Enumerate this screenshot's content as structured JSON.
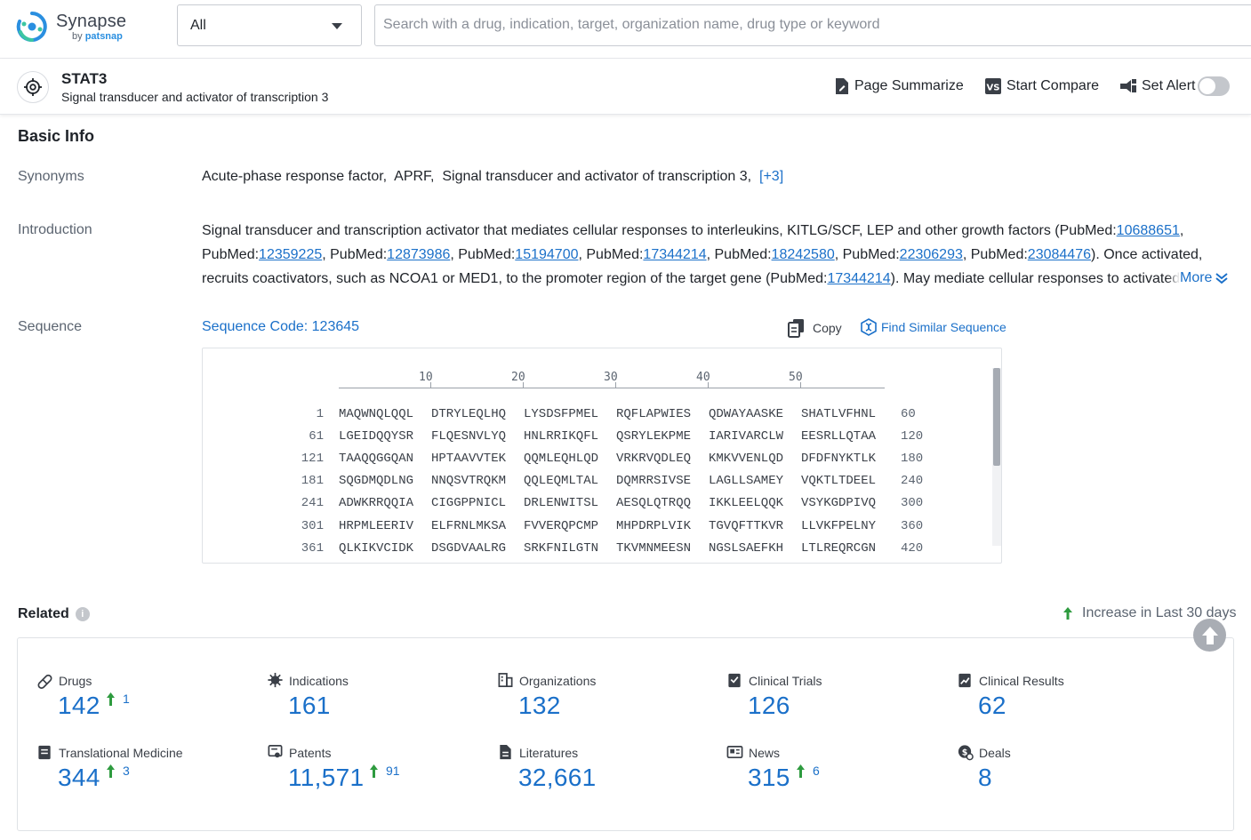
{
  "app": {
    "name": "Synapse",
    "by_prefix": "by",
    "by_brand": "patsnap",
    "brand_color": "#2a8fe0"
  },
  "search": {
    "scope_value": "All",
    "placeholder": "Search with a drug, indication, target, organization name, drug type or keyword"
  },
  "target": {
    "name": "STAT3",
    "full_name": "Signal transducer and activator of transcription 3"
  },
  "actions": {
    "summarize": "Page Summarize",
    "compare": "Start Compare",
    "alert": "Set Alert",
    "alert_on": false
  },
  "basic_info": {
    "title": "Basic Info",
    "synonyms_label": "Synonyms",
    "synonyms": [
      "Acute-phase response factor,",
      "APRF,",
      "Signal transducer and activator of transcription 3,"
    ],
    "synonyms_more": "[+3]",
    "intro_label": "Introduction",
    "intro_line1_text": "Signal transducer and transcription activator that mediates cellular responses to interleukins, KITLG/SCF, LEP and other growth factors (PubMed:",
    "intro_refs": [
      "10688651",
      "12359225",
      "12873986",
      "15194700",
      "17344214",
      "18242580",
      "22306293",
      "23084476"
    ],
    "intro_ref_prefix": "PubMed:",
    "intro_line3_a": "). Once activated,",
    "intro_line3_b": "recruits coactivators, such as NCOA1 or MED1, to the promoter region of the target gene (PubMed:",
    "intro_line3_ref": "17344214",
    "intro_line3_c": "). May mediate cellular responses to activated F",
    "more_label": "More",
    "sequence_label": "Sequence",
    "sequence_code": "Sequence Code: 123645",
    "copy_label": "Copy",
    "find_similar_label": "Find Similar Sequence",
    "ruler": [
      "10",
      "20",
      "30",
      "40",
      "50"
    ],
    "rows": [
      {
        "start": "1",
        "blocks": [
          "MAQWNQLQQL",
          "DTRYLEQLHQ",
          "LYSDSFPMEL",
          "RQFLAPWIES",
          "QDWAYAASKE",
          "SHATLVFHNL"
        ],
        "end": "60"
      },
      {
        "start": "61",
        "blocks": [
          "LGEIDQQYSR",
          "FLQESNVLYQ",
          "HNLRRIKQFL",
          "QSRYLEKPME",
          "IARIVARCLW",
          "EESRLLQTAA"
        ],
        "end": "120"
      },
      {
        "start": "121",
        "blocks": [
          "TAAQQGGQAN",
          "HPTAAVVTEK",
          "QQMLEQHLQD",
          "VRKRVQDLEQ",
          "KMKVVENLQD",
          "DFDFNYKTLK"
        ],
        "end": "180"
      },
      {
        "start": "181",
        "blocks": [
          "SQGDMQDLNG",
          "NNQSVTRQKM",
          "QQLEQMLTAL",
          "DQMRRSIVSE",
          "LAGLLSAMEY",
          "VQKTLTDEEL"
        ],
        "end": "240"
      },
      {
        "start": "241",
        "blocks": [
          "ADWKRRQQIA",
          "CIGGPPNICL",
          "DRLENWITSL",
          "AESQLQTRQQ",
          "IKKLEELQQK",
          "VSYKGDPIVQ"
        ],
        "end": "300"
      },
      {
        "start": "301",
        "blocks": [
          "HRPMLEERIV",
          "ELFRNLMKSA",
          "FVVERQPCMP",
          "MHPDRPLVIK",
          "TGVQFTTKVR",
          "LLVKFPELNY"
        ],
        "end": "360"
      },
      {
        "start": "361",
        "blocks": [
          "QLKIKVCIDK",
          "DSGDVAALRG",
          "SRKFNILGTN",
          "TKVMNMEESN",
          "NGSLSAEFKH",
          "LTLREQRCGN"
        ],
        "end": "420"
      }
    ]
  },
  "related": {
    "title": "Related",
    "increase_label": "Increase in Last 30 days",
    "up_color": "#2e9b3f",
    "stats": [
      {
        "label": "Drugs",
        "value": "142",
        "inc": "1",
        "icon": "pill-icon"
      },
      {
        "label": "Indications",
        "value": "161",
        "inc": "",
        "icon": "virus-icon"
      },
      {
        "label": "Organizations",
        "value": "132",
        "inc": "",
        "icon": "building-icon"
      },
      {
        "label": "Clinical Trials",
        "value": "126",
        "inc": "",
        "icon": "clipboard-icon"
      },
      {
        "label": "Clinical Results",
        "value": "62",
        "inc": "",
        "icon": "chart-doc-icon"
      },
      {
        "label": "Translational Medicine",
        "value": "344",
        "inc": "3",
        "icon": "book-icon"
      },
      {
        "label": "Patents",
        "value": "11,571",
        "inc": "91",
        "icon": "patent-icon"
      },
      {
        "label": "Literatures",
        "value": "32,661",
        "inc": "",
        "icon": "document-icon"
      },
      {
        "label": "News",
        "value": "315",
        "inc": "6",
        "icon": "newspaper-icon"
      },
      {
        "label": "Deals",
        "value": "8",
        "inc": "",
        "icon": "handshake-icon"
      }
    ]
  }
}
